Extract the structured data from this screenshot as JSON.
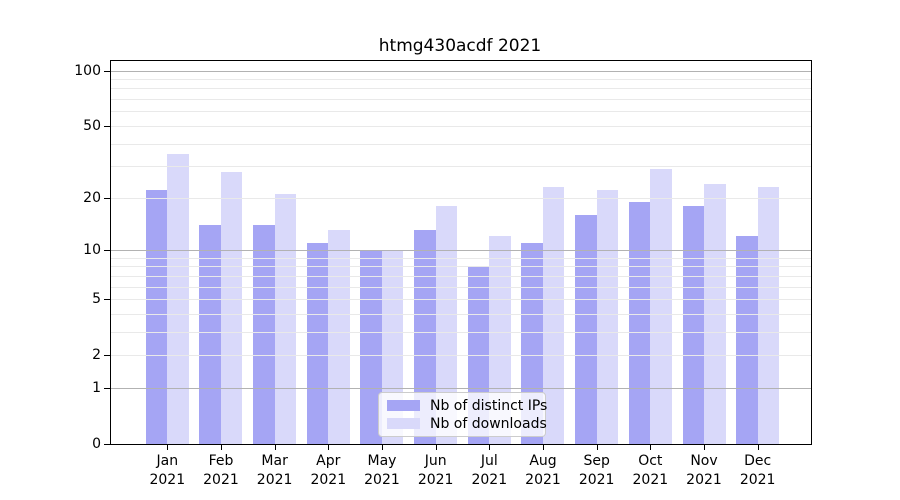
{
  "title": "htmg430acdf 2021",
  "chart_data": {
    "type": "bar",
    "title": "htmg430acdf 2021",
    "categories": [
      "Jan 2021",
      "Feb 2021",
      "Mar 2021",
      "Apr 2021",
      "May 2021",
      "Jun 2021",
      "Jul 2021",
      "Aug 2021",
      "Sep 2021",
      "Oct 2021",
      "Nov 2021",
      "Dec 2021"
    ],
    "series": [
      {
        "name": "Nb of distinct IPs",
        "color": "#a5a5f4",
        "values": [
          22,
          14,
          14,
          11,
          10,
          13,
          8,
          11,
          16,
          19,
          18,
          12
        ]
      },
      {
        "name": "Nb of downloads",
        "color": "#d9d9fa",
        "values": [
          35,
          28,
          21,
          13,
          10,
          18,
          12,
          23,
          22,
          29,
          24,
          23
        ]
      }
    ],
    "xlabel": "",
    "ylabel": "",
    "yscale": "log1p",
    "ylim": [
      0,
      112
    ],
    "ytick_values": [
      0,
      1,
      2,
      5,
      10,
      20,
      50,
      100
    ],
    "ytick_labels": [
      "0",
      "1",
      "2",
      "5",
      "10",
      "20",
      "50",
      "100"
    ],
    "major_grid_values": [
      1,
      10,
      100
    ],
    "minor_grid_values": [
      2,
      3,
      4,
      5,
      6,
      7,
      8,
      9,
      20,
      30,
      40,
      50,
      60,
      70,
      80,
      90
    ],
    "grid": "horizontal major+minor",
    "legend_position": "lower center"
  },
  "legend": {
    "items": [
      {
        "label": "Nb of distinct IPs",
        "color": "#a5a5f4"
      },
      {
        "label": "Nb of downloads",
        "color": "#d9d9fa"
      }
    ]
  },
  "colors": {
    "bar_distinct_ips": "#a5a5f4",
    "bar_downloads": "#d9d9fa",
    "major_grid": "#b2b2b2",
    "minor_grid": "#e9e9e9",
    "spine": "#000000",
    "background": "#ffffff",
    "text": "#000000"
  }
}
